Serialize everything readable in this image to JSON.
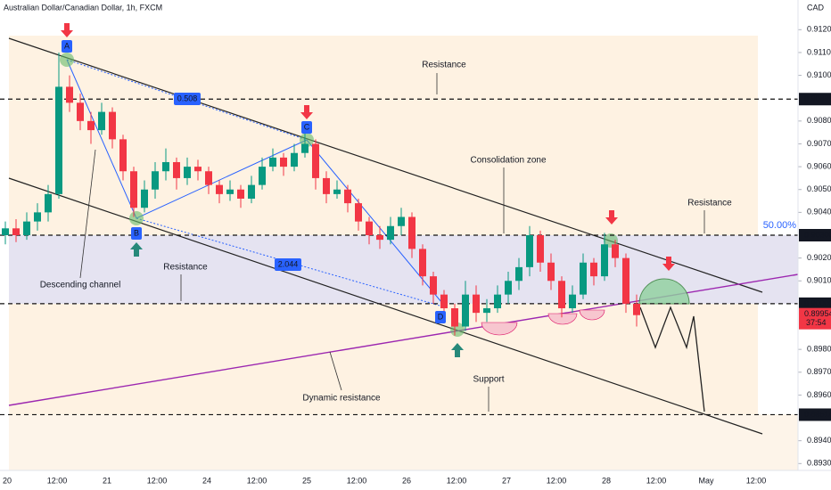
{
  "chart_data": {
    "type": "candlestick",
    "title": "Australian Dollar/Canadian Dollar, 1h, FXCM",
    "currency": "CAD",
    "up_color": "#089981",
    "down_color": "#f23645",
    "ylim": [
      0.8927,
      0.9133
    ],
    "yticks": [
      {
        "value": 0.912,
        "label": "0.91200"
      },
      {
        "value": 0.911,
        "label": "0.91100"
      },
      {
        "value": 0.91,
        "label": "0.91000"
      },
      {
        "value": 0.908,
        "label": "0.90800"
      },
      {
        "value": 0.907,
        "label": "0.90700"
      },
      {
        "value": 0.906,
        "label": "0.90600"
      },
      {
        "value": 0.905,
        "label": "0.90500"
      },
      {
        "value": 0.904,
        "label": "0.90400"
      },
      {
        "value": 0.902,
        "label": "0.90200"
      },
      {
        "value": 0.901,
        "label": "0.90100"
      },
      {
        "value": 0.898,
        "label": "0.89800"
      },
      {
        "value": 0.897,
        "label": "0.89700"
      },
      {
        "value": 0.896,
        "label": "0.89600"
      },
      {
        "value": 0.894,
        "label": "0.89400"
      },
      {
        "value": 0.893,
        "label": "0.89300"
      }
    ],
    "levels": [
      {
        "value": 0.90896,
        "label": "0.90896"
      },
      {
        "value": 0.903,
        "label": "0.90300"
      },
      {
        "value": 0.9,
        "label": "0.90000"
      },
      {
        "value": 0.89514,
        "label": "0.89514"
      }
    ],
    "last_price": {
      "value": 0.89954,
      "label": "0.89954"
    },
    "countdown": "37:54",
    "fib_label": "50.00%",
    "categories": [
      "20",
      "12:00",
      "21",
      "12:00",
      "24",
      "12:00",
      "25",
      "12:00",
      "26",
      "12:00",
      "27",
      "12:00",
      "28",
      "12:00",
      "May",
      "12:00"
    ],
    "points": [
      "A",
      "B",
      "C",
      "D"
    ],
    "ratios": [
      "0.508",
      "2.044"
    ],
    "annotations": [
      "Resistance",
      "Consolidation zone",
      "Resistance",
      "Resistance",
      "Descending channel",
      "Dynamic resistance",
      "Support"
    ],
    "candles": [
      [
        0.903,
        0.9036,
        0.9026,
        0.9033
      ],
      [
        0.9033,
        0.9037,
        0.9027,
        0.903
      ],
      [
        0.903,
        0.904,
        0.9028,
        0.9036
      ],
      [
        0.9036,
        0.9044,
        0.9032,
        0.904
      ],
      [
        0.904,
        0.9052,
        0.9036,
        0.9048
      ],
      [
        0.9048,
        0.911,
        0.9046,
        0.9095
      ],
      [
        0.9095,
        0.91,
        0.9084,
        0.9088
      ],
      [
        0.9088,
        0.9092,
        0.9076,
        0.908
      ],
      [
        0.908,
        0.9084,
        0.907,
        0.9076
      ],
      [
        0.9076,
        0.9088,
        0.9074,
        0.9084
      ],
      [
        0.9084,
        0.9086,
        0.9068,
        0.9072
      ],
      [
        0.9072,
        0.9074,
        0.9054,
        0.9058
      ],
      [
        0.9058,
        0.906,
        0.9038,
        0.9042
      ],
      [
        0.9042,
        0.9054,
        0.904,
        0.905
      ],
      [
        0.905,
        0.9062,
        0.9046,
        0.9058
      ],
      [
        0.9058,
        0.9068,
        0.9054,
        0.9062
      ],
      [
        0.9062,
        0.9064,
        0.905,
        0.9055
      ],
      [
        0.9055,
        0.9064,
        0.9052,
        0.906
      ],
      [
        0.906,
        0.9063,
        0.9054,
        0.9058
      ],
      [
        0.9058,
        0.906,
        0.9048,
        0.9052
      ],
      [
        0.9052,
        0.9054,
        0.9044,
        0.9048
      ],
      [
        0.9048,
        0.9054,
        0.9045,
        0.905
      ],
      [
        0.905,
        0.9052,
        0.9042,
        0.9046
      ],
      [
        0.9046,
        0.9056,
        0.9044,
        0.9052
      ],
      [
        0.9052,
        0.9064,
        0.905,
        0.906
      ],
      [
        0.906,
        0.9068,
        0.9058,
        0.9064
      ],
      [
        0.9064,
        0.9066,
        0.9056,
        0.906
      ],
      [
        0.906,
        0.907,
        0.9058,
        0.9066
      ],
      [
        0.9066,
        0.9076,
        0.9064,
        0.907
      ],
      [
        0.907,
        0.9072,
        0.905,
        0.9055
      ],
      [
        0.9055,
        0.9058,
        0.9044,
        0.9048
      ],
      [
        0.9048,
        0.9054,
        0.9046,
        0.905
      ],
      [
        0.905,
        0.9052,
        0.904,
        0.9044
      ],
      [
        0.9044,
        0.9046,
        0.9032,
        0.9036
      ],
      [
        0.9036,
        0.9038,
        0.9026,
        0.903
      ],
      [
        0.903,
        0.9034,
        0.9024,
        0.9028
      ],
      [
        0.9028,
        0.9038,
        0.9026,
        0.9034
      ],
      [
        0.9034,
        0.9042,
        0.903,
        0.9038
      ],
      [
        0.9038,
        0.904,
        0.902,
        0.9024
      ],
      [
        0.9024,
        0.9026,
        0.9008,
        0.9012
      ],
      [
        0.9012,
        0.9014,
        0.9,
        0.9004
      ],
      [
        0.9004,
        0.9006,
        0.8992,
        0.8998
      ],
      [
        0.8998,
        0.9,
        0.8986,
        0.899
      ],
      [
        0.899,
        0.901,
        0.8988,
        0.9004
      ],
      [
        0.9004,
        0.9008,
        0.8992,
        0.8996
      ],
      [
        0.8996,
        0.9002,
        0.8992,
        0.8998
      ],
      [
        0.8998,
        0.9008,
        0.8996,
        0.9004
      ],
      [
        0.9004,
        0.9014,
        0.9,
        0.901
      ],
      [
        0.901,
        0.902,
        0.9006,
        0.9016
      ],
      [
        0.9016,
        0.9034,
        0.9012,
        0.903
      ],
      [
        0.903,
        0.9032,
        0.9014,
        0.9018
      ],
      [
        0.9018,
        0.9022,
        0.9006,
        0.901
      ],
      [
        0.901,
        0.9012,
        0.8994,
        0.8998
      ],
      [
        0.8998,
        0.9008,
        0.8996,
        0.9004
      ],
      [
        0.9004,
        0.9022,
        0.9002,
        0.9018
      ],
      [
        0.9018,
        0.902,
        0.9008,
        0.9012
      ],
      [
        0.9012,
        0.9031,
        0.901,
        0.9026
      ],
      [
        0.9026,
        0.9028,
        0.9016,
        0.902
      ],
      [
        0.902,
        0.9022,
        0.8996,
        0.9
      ],
      [
        0.9,
        0.9004,
        0.899,
        0.8995
      ]
    ]
  }
}
